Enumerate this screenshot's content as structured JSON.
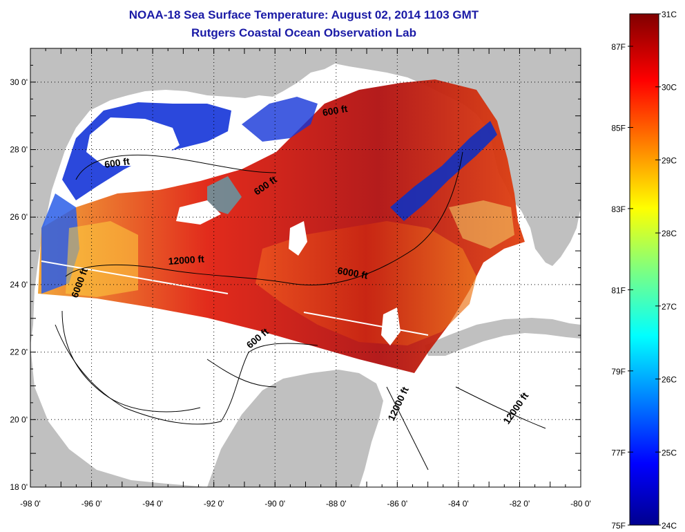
{
  "header": {
    "title": "NOAA-18 Sea Surface Temperature:  August 02, 2014 1103 GMT",
    "subtitle": "Rutgers Coastal Ocean Observation Lab"
  },
  "axes": {
    "x_ticks": [
      "-98 0'",
      "-96 0'",
      "-94 0'",
      "-92 0'",
      "-90 0'",
      "-88 0'",
      "-86 0'",
      "-84 0'",
      "-82 0'",
      "-80 0'"
    ],
    "y_ticks": [
      "30 0'",
      "28 0'",
      "26 0'",
      "24 0'",
      "22 0'",
      "20 0'",
      "18 0'"
    ],
    "lon_range": [
      -98,
      -80
    ],
    "lat_range": [
      18,
      31
    ]
  },
  "contour_labels": [
    {
      "text": "600 ft"
    },
    {
      "text": "600 ft"
    },
    {
      "text": "600 ft"
    },
    {
      "text": "6000 ft"
    },
    {
      "text": "12000 ft"
    },
    {
      "text": "6000 ft"
    },
    {
      "text": "600 ft"
    },
    {
      "text": "12000 ft"
    },
    {
      "text": "12000 ft"
    }
  ],
  "colorbar": {
    "celsius_labels": [
      "31C",
      "30C",
      "29C",
      "28C",
      "27C",
      "26C",
      "25C",
      "24C"
    ],
    "fahrenheit_labels": [
      "87F",
      "85F",
      "83F",
      "81F",
      "79F",
      "77F",
      "75F"
    ],
    "range_c": [
      24,
      31
    ]
  },
  "colors": {
    "title": "#1a1aa6",
    "land": "#c0c0c0",
    "no_data": "#ffffff"
  }
}
